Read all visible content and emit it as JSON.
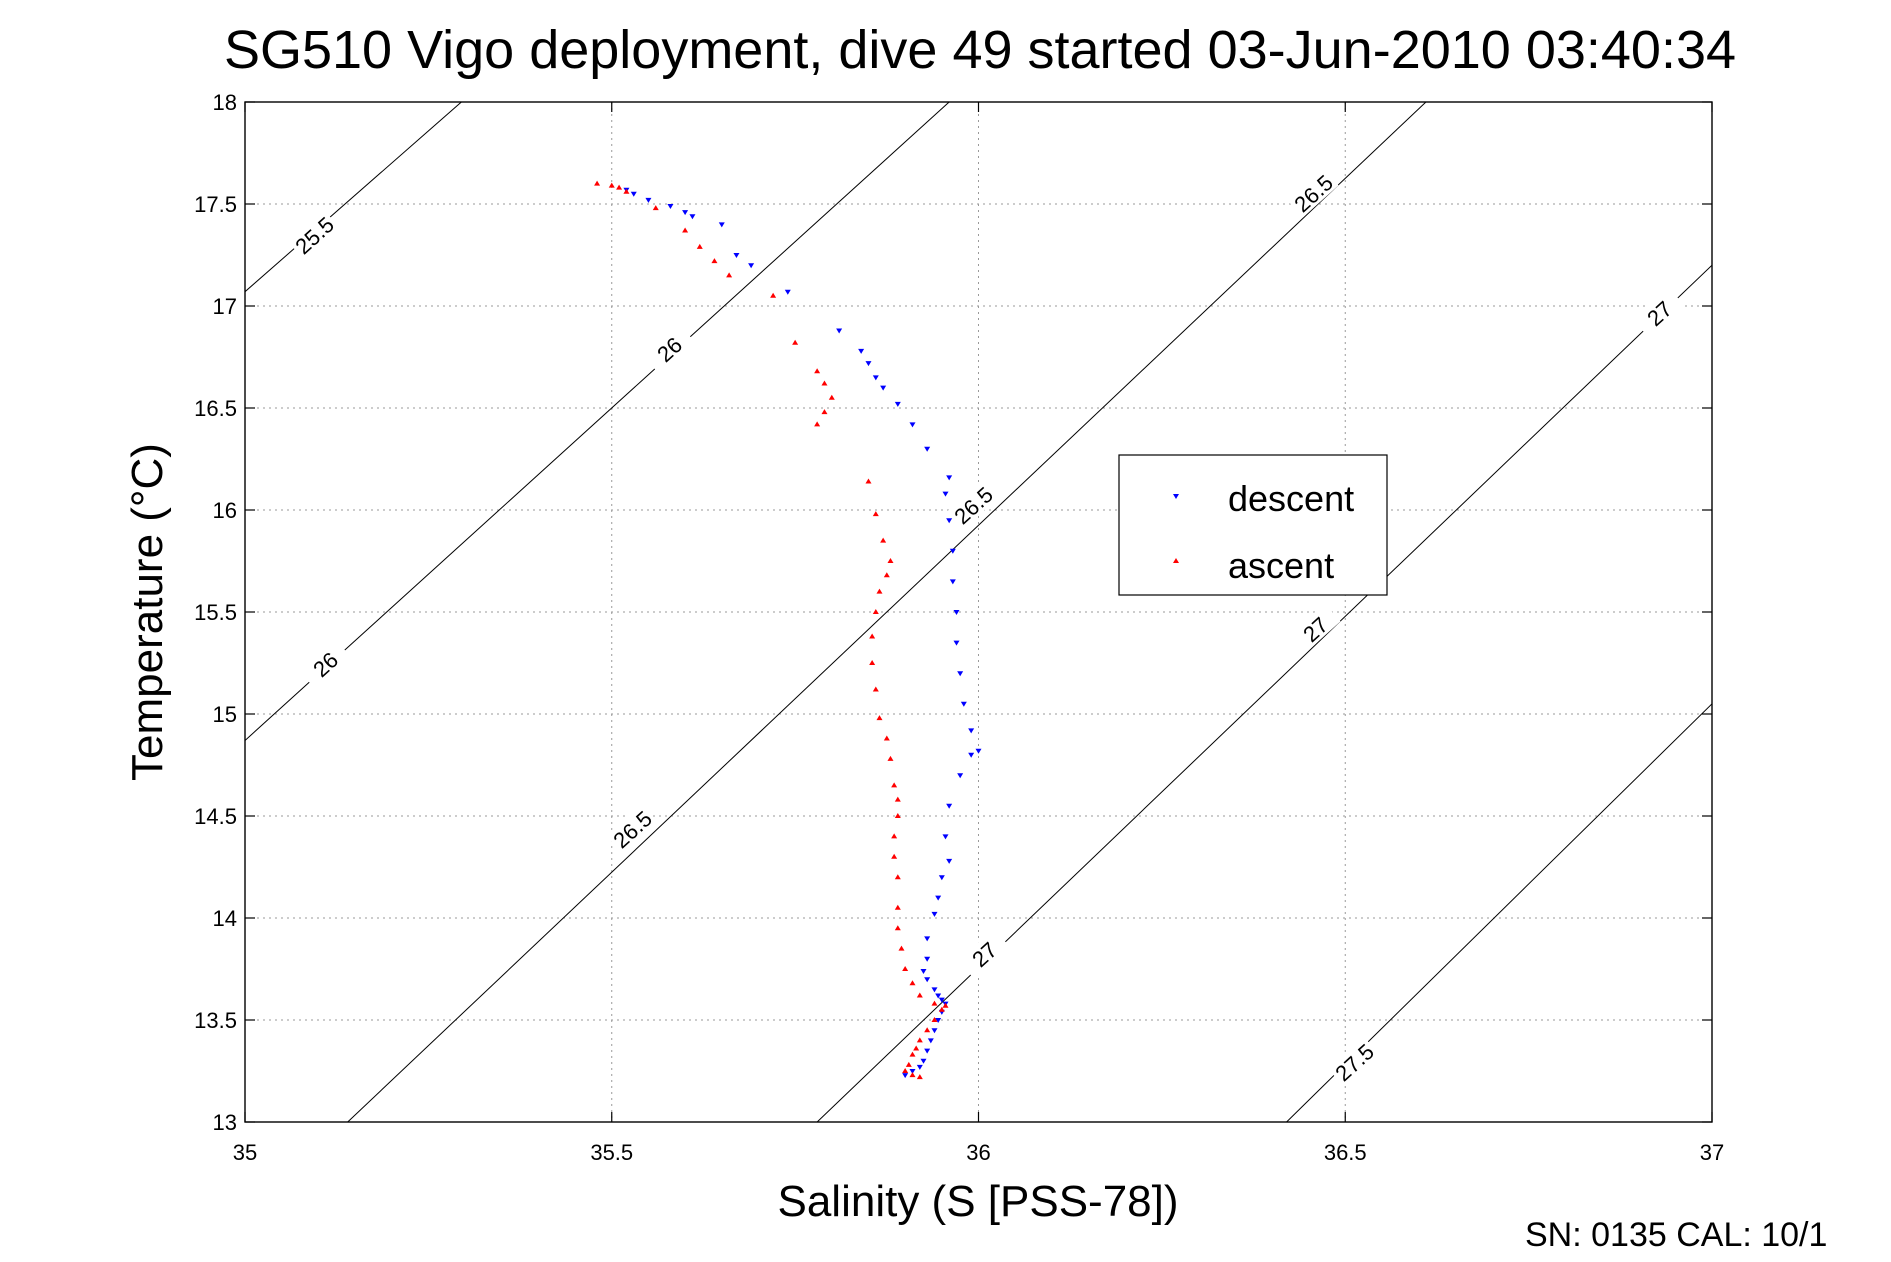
{
  "chart_data": {
    "type": "scatter",
    "title": "SG510 Vigo deployment, dive 49 started 03-Jun-2010 03:40:34",
    "xlabel": "Salinity (S [PSS-78])",
    "ylabel": "Temperature (°C)",
    "xlim": [
      35,
      37
    ],
    "ylim": [
      13,
      18
    ],
    "x_ticks": [
      "35",
      "35.5",
      "36",
      "36.5",
      "37"
    ],
    "y_ticks": [
      "13",
      "13.5",
      "14",
      "14.5",
      "15",
      "15.5",
      "16",
      "16.5",
      "17",
      "17.5",
      "18"
    ],
    "grid": true,
    "legend_position": "center-right",
    "footer": "SN: 0135  CAL: 10/1",
    "contour_labels": [
      "25.5",
      "26",
      "26",
      "26.5",
      "26.5",
      "26.5",
      "27",
      "27",
      "27",
      "27.5"
    ],
    "series": [
      {
        "name": "descent",
        "color": "#0000ff",
        "marker": "triangle-down",
        "x": [
          35.52,
          35.53,
          35.55,
          35.58,
          35.6,
          35.61,
          35.65,
          35.67,
          35.69,
          35.74,
          35.81,
          35.84,
          35.85,
          35.86,
          35.87,
          35.89,
          35.91,
          35.93,
          35.96,
          35.955,
          35.96,
          35.965,
          35.965,
          35.97,
          35.97,
          35.975,
          35.98,
          35.99,
          36.0,
          35.99,
          35.975,
          35.96,
          35.955,
          35.96,
          35.95,
          35.945,
          35.94,
          35.93,
          35.93,
          35.925,
          35.93,
          35.94,
          35.945,
          35.95,
          35.955,
          35.95,
          35.945,
          35.94,
          35.935,
          35.93,
          35.925,
          35.92,
          35.91,
          35.9
        ],
        "y": [
          17.57,
          17.55,
          17.52,
          17.49,
          17.46,
          17.44,
          17.4,
          17.25,
          17.2,
          17.07,
          16.88,
          16.78,
          16.72,
          16.65,
          16.6,
          16.52,
          16.42,
          16.3,
          16.16,
          16.08,
          15.95,
          15.8,
          15.65,
          15.5,
          15.35,
          15.2,
          15.05,
          14.92,
          14.82,
          14.8,
          14.7,
          14.55,
          14.4,
          14.28,
          14.2,
          14.1,
          14.02,
          13.9,
          13.8,
          13.74,
          13.7,
          13.65,
          13.62,
          13.6,
          13.58,
          13.54,
          13.5,
          13.45,
          13.4,
          13.35,
          13.3,
          13.27,
          13.25,
          13.23
        ]
      },
      {
        "name": "ascent",
        "color": "#ff0000",
        "marker": "triangle-up",
        "x": [
          35.48,
          35.5,
          35.51,
          35.52,
          35.56,
          35.6,
          35.62,
          35.64,
          35.66,
          35.72,
          35.75,
          35.78,
          35.79,
          35.8,
          35.79,
          35.78,
          35.85,
          35.86,
          35.87,
          35.88,
          35.875,
          35.865,
          35.86,
          35.855,
          35.855,
          35.86,
          35.865,
          35.875,
          35.88,
          35.885,
          35.89,
          35.89,
          35.885,
          35.885,
          35.89,
          35.89,
          35.89,
          35.895,
          35.9,
          35.91,
          35.92,
          35.94,
          35.955,
          35.95,
          35.94,
          35.93,
          35.92,
          35.915,
          35.91,
          35.905,
          35.9,
          35.91,
          35.92
        ],
        "y": [
          17.6,
          17.59,
          17.58,
          17.56,
          17.48,
          17.37,
          17.29,
          17.22,
          17.15,
          17.05,
          16.82,
          16.68,
          16.62,
          16.55,
          16.48,
          16.42,
          16.14,
          15.98,
          15.85,
          15.75,
          15.68,
          15.6,
          15.5,
          15.38,
          15.25,
          15.12,
          14.98,
          14.88,
          14.78,
          14.65,
          14.58,
          14.5,
          14.4,
          14.3,
          14.2,
          14.05,
          13.95,
          13.85,
          13.75,
          13.68,
          13.62,
          13.58,
          13.57,
          13.55,
          13.5,
          13.45,
          13.4,
          13.36,
          13.33,
          13.28,
          13.25,
          13.23,
          13.22
        ]
      }
    ]
  }
}
